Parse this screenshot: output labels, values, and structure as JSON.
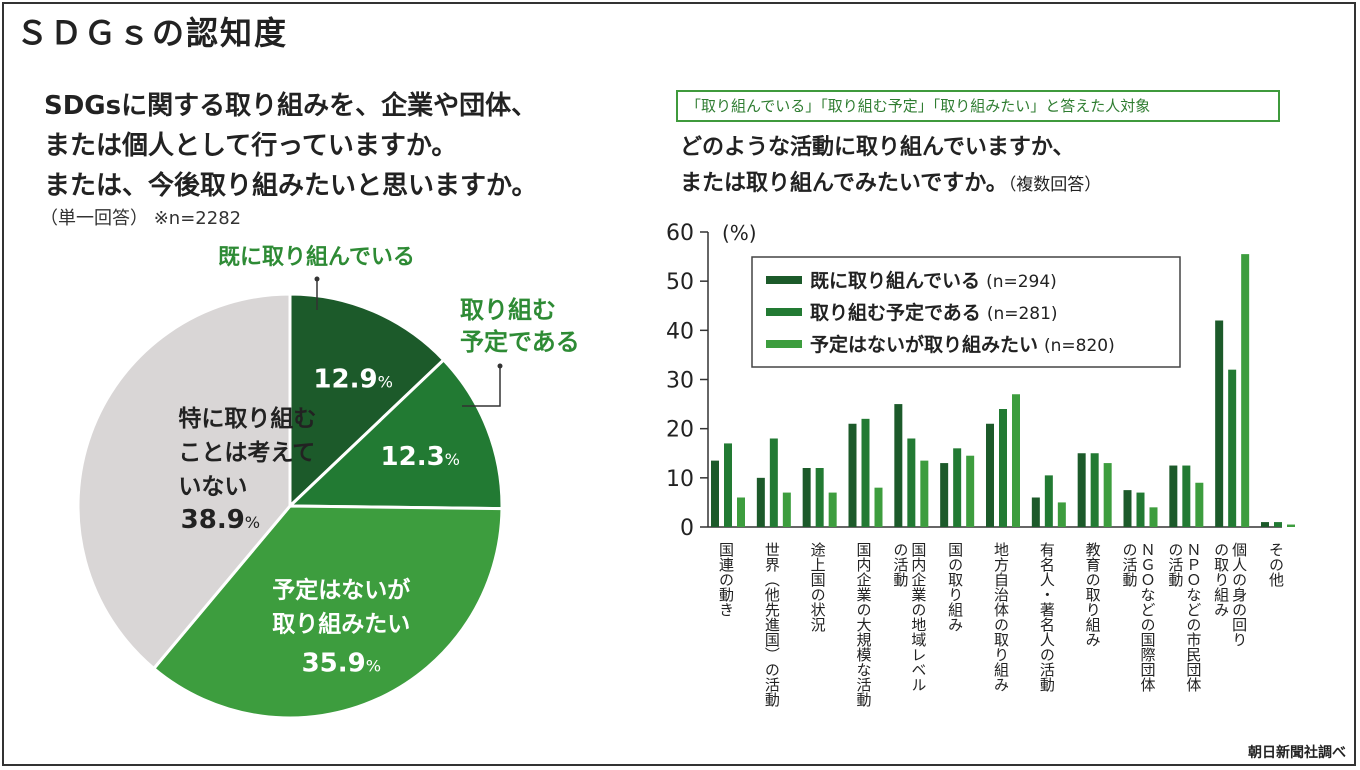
{
  "title": "ＳＤＧｓの認知度",
  "source": "朝日新聞社調べ",
  "left": {
    "question_lines": [
      "SDGsに関する取り組みを、企業や団体、",
      "または個人として行っていますか。",
      "または、今後取り組みたいと思いますか。"
    ],
    "note": "（単一回答） ※n=2282"
  },
  "right": {
    "header": "「取り組んでいる」「取り組む予定」「取り組みたい」と答えた人対象",
    "question_line1": "どのような活動に取り組んでいますか、",
    "question_line2": "または取り組んでみたいですか。",
    "question_sub": "（複数回答）"
  },
  "colors": {
    "dark": "#1c5a2a",
    "medium": "#227a33",
    "light": "#3d9d3e",
    "gray": "#d9d6d6",
    "label_green": "#2e8b35"
  },
  "chart_data": [
    {
      "type": "pie",
      "slices": [
        {
          "label": "既に取り組んでいる",
          "value": 12.9,
          "display": "12.9",
          "unit": "%"
        },
        {
          "label_lines": [
            "取り組む",
            "予定である"
          ],
          "value": 12.3,
          "display": "12.3",
          "unit": "%"
        },
        {
          "label_lines": [
            "予定はないが",
            "取り組みたい"
          ],
          "value": 35.9,
          "display": "35.9",
          "unit": "%"
        },
        {
          "label_lines": [
            "特に取り組む",
            "ことは考えて",
            "いない"
          ],
          "value": 38.9,
          "display": "38.9",
          "unit": "%"
        }
      ]
    },
    {
      "type": "bar",
      "ylabel": "(%)",
      "ylim": [
        0,
        60
      ],
      "yticks": [
        "0",
        "10",
        "20",
        "30",
        "40",
        "50",
        "60"
      ],
      "categories": [
        [
          "国連の動き"
        ],
        [
          "世界（他先進国）の活動"
        ],
        [
          "途上国の状況"
        ],
        [
          "国内企業の大規模な活動"
        ],
        [
          "国内企業の地域レベル",
          "の活動"
        ],
        [
          "国の取り組み"
        ],
        [
          "地方自治体の取り組み"
        ],
        [
          "有名人・著名人の活動"
        ],
        [
          "教育の取り組み"
        ],
        [
          "ＮＧＯなどの国際団体",
          "の活動"
        ],
        [
          "ＮＰＯなどの市民団体",
          "の活動"
        ],
        [
          "個人の身の回り",
          "の取り組み"
        ],
        [
          "その他"
        ]
      ],
      "series": [
        {
          "name": "既に取り組んでいる",
          "n": "(n=294)",
          "values": [
            13.5,
            10,
            12,
            21,
            25,
            13,
            21,
            6,
            15,
            7.5,
            12.5,
            42,
            1
          ]
        },
        {
          "name": "取り組む予定である",
          "n": "(n=281)",
          "values": [
            17,
            18,
            12,
            22,
            18,
            16,
            24,
            10.5,
            15,
            7,
            12.5,
            32,
            1
          ]
        },
        {
          "name": "予定はないが取り組みたい",
          "n": "(n=820)",
          "values": [
            6,
            7,
            7,
            8,
            13.5,
            14.5,
            27,
            5,
            13,
            4,
            9,
            55.5,
            0.5
          ]
        }
      ]
    }
  ]
}
